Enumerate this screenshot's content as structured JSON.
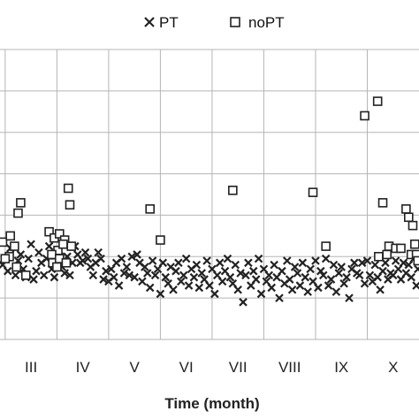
{
  "chart_data": {
    "type": "scatter",
    "xlabel": "Time (month)",
    "x_tick_labels": [
      "III",
      "IV",
      "V",
      "VI",
      "VII",
      "VIII",
      "IX",
      "X"
    ],
    "xlim": [
      2.4,
      10.5
    ],
    "ylim": [
      0,
      7
    ],
    "grid": true,
    "legend_position": "top",
    "series": [
      {
        "name": "PT",
        "marker": "x",
        "color": "#222222",
        "points": [
          [
            2.45,
            1.8
          ],
          [
            2.55,
            1.65
          ],
          [
            2.6,
            2.2
          ],
          [
            2.7,
            1.55
          ],
          [
            2.75,
            1.9
          ],
          [
            2.8,
            2.05
          ],
          [
            2.85,
            1.7
          ],
          [
            2.9,
            1.5
          ],
          [
            2.95,
            1.95
          ],
          [
            3.0,
            2.3
          ],
          [
            3.05,
            1.45
          ],
          [
            3.1,
            1.65
          ],
          [
            3.15,
            2.1
          ],
          [
            3.2,
            1.85
          ],
          [
            3.25,
            1.55
          ],
          [
            3.3,
            1.95
          ],
          [
            3.35,
            2.25
          ],
          [
            3.4,
            1.7
          ],
          [
            3.45,
            1.5
          ],
          [
            3.5,
            1.9
          ],
          [
            3.55,
            2.15
          ],
          [
            3.6,
            1.75
          ],
          [
            3.65,
            1.6
          ],
          [
            3.7,
            2.0
          ],
          [
            3.75,
            1.55
          ],
          [
            3.8,
            1.85
          ],
          [
            3.85,
            2.25
          ],
          [
            3.9,
            2.05
          ],
          [
            3.95,
            1.85
          ],
          [
            4.0,
            1.9
          ],
          [
            4.05,
            2.1
          ],
          [
            4.1,
            1.95
          ],
          [
            4.15,
            1.75
          ],
          [
            4.2,
            1.55
          ],
          [
            4.25,
            1.85
          ],
          [
            4.3,
            2.1
          ],
          [
            4.35,
            1.95
          ],
          [
            4.4,
            1.45
          ],
          [
            4.45,
            1.65
          ],
          [
            4.5,
            1.4
          ],
          [
            4.55,
            1.7
          ],
          [
            4.6,
            1.5
          ],
          [
            4.65,
            1.85
          ],
          [
            4.7,
            1.3
          ],
          [
            4.75,
            1.95
          ],
          [
            4.8,
            1.6
          ],
          [
            4.85,
            1.75
          ],
          [
            4.9,
            1.55
          ],
          [
            4.95,
            2.0
          ],
          [
            5.0,
            1.5
          ],
          [
            5.05,
            2.05
          ],
          [
            5.1,
            1.85
          ],
          [
            5.15,
            1.4
          ],
          [
            5.2,
            1.75
          ],
          [
            5.25,
            1.6
          ],
          [
            5.3,
            1.25
          ],
          [
            5.35,
            1.9
          ],
          [
            5.4,
            1.55
          ],
          [
            5.45,
            1.7
          ],
          [
            5.5,
            1.1
          ],
          [
            5.55,
            1.85
          ],
          [
            5.6,
            1.5
          ],
          [
            5.65,
            1.35
          ],
          [
            5.7,
            1.75
          ],
          [
            5.75,
            1.2
          ],
          [
            5.8,
            1.65
          ],
          [
            5.85,
            1.85
          ],
          [
            5.9,
            1.4
          ],
          [
            5.95,
            1.55
          ],
          [
            6.0,
            1.95
          ],
          [
            6.05,
            1.3
          ],
          [
            6.1,
            1.7
          ],
          [
            6.15,
            1.5
          ],
          [
            6.2,
            1.8
          ],
          [
            6.25,
            1.25
          ],
          [
            6.3,
            1.6
          ],
          [
            6.35,
            1.45
          ],
          [
            6.4,
            1.9
          ],
          [
            6.45,
            1.3
          ],
          [
            6.5,
            1.7
          ],
          [
            6.55,
            1.1
          ],
          [
            6.6,
            1.55
          ],
          [
            6.65,
            1.85
          ],
          [
            6.7,
            1.4
          ],
          [
            6.75,
            1.65
          ],
          [
            6.8,
            1.95
          ],
          [
            6.85,
            1.5
          ],
          [
            6.9,
            1.35
          ],
          [
            6.95,
            1.8
          ],
          [
            7.0,
            1.2
          ],
          [
            7.05,
            1.6
          ],
          [
            7.1,
            0.9
          ],
          [
            7.15,
            1.55
          ],
          [
            7.2,
            1.85
          ],
          [
            7.25,
            1.3
          ],
          [
            7.3,
            1.65
          ],
          [
            7.35,
            1.45
          ],
          [
            7.4,
            1.95
          ],
          [
            7.45,
            1.1
          ],
          [
            7.5,
            1.7
          ],
          [
            7.55,
            1.4
          ],
          [
            7.6,
            1.55
          ],
          [
            7.65,
            1.25
          ],
          [
            7.7,
            1.8
          ],
          [
            7.75,
            1.5
          ],
          [
            7.8,
            1.0
          ],
          [
            7.85,
            1.65
          ],
          [
            7.9,
            1.35
          ],
          [
            7.95,
            1.9
          ],
          [
            8.0,
            1.45
          ],
          [
            8.05,
            1.2
          ],
          [
            8.1,
            1.75
          ],
          [
            8.15,
            1.6
          ],
          [
            8.2,
            1.3
          ],
          [
            8.25,
            1.85
          ],
          [
            8.3,
            1.5
          ],
          [
            8.35,
            1.15
          ],
          [
            8.4,
            1.7
          ],
          [
            8.45,
            1.4
          ],
          [
            8.5,
            1.9
          ],
          [
            8.55,
            1.25
          ],
          [
            8.6,
            1.65
          ],
          [
            8.65,
            1.55
          ],
          [
            8.7,
            1.95
          ],
          [
            8.75,
            1.3
          ],
          [
            8.8,
            1.45
          ],
          [
            8.85,
            1.8
          ],
          [
            8.9,
            1.15
          ],
          [
            8.95,
            1.6
          ],
          [
            9.0,
            1.75
          ],
          [
            9.05,
            1.35
          ],
          [
            9.1,
            1.5
          ],
          [
            9.15,
            1.0
          ],
          [
            9.2,
            1.7
          ],
          [
            9.25,
            1.85
          ],
          [
            9.3,
            1.6
          ],
          [
            9.35,
            1.55
          ],
          [
            9.4,
            1.85
          ],
          [
            9.45,
            1.35
          ],
          [
            9.5,
            1.9
          ],
          [
            9.55,
            1.55
          ],
          [
            9.6,
            1.4
          ],
          [
            9.65,
            1.8
          ],
          [
            9.7,
            1.5
          ],
          [
            9.75,
            1.2
          ],
          [
            9.8,
            1.65
          ],
          [
            9.85,
            1.85
          ],
          [
            9.9,
            1.45
          ],
          [
            9.95,
            1.6
          ],
          [
            10.0,
            1.55
          ],
          [
            10.05,
            1.9
          ],
          [
            10.1,
            1.7
          ],
          [
            10.15,
            1.45
          ],
          [
            10.2,
            1.85
          ],
          [
            10.25,
            1.6
          ],
          [
            10.3,
            1.8
          ],
          [
            10.35,
            1.5
          ],
          [
            10.4,
            1.95
          ],
          [
            10.45,
            1.3
          ],
          [
            10.48,
            1.7
          ]
        ]
      },
      {
        "name": "noPT",
        "marker": "square",
        "color": "#222222",
        "points": [
          [
            2.45,
            2.35
          ],
          [
            2.6,
            2.5
          ],
          [
            2.68,
            2.25
          ],
          [
            2.75,
            3.05
          ],
          [
            2.8,
            3.3
          ],
          [
            2.58,
            2.0
          ],
          [
            2.5,
            1.95
          ],
          [
            2.72,
            1.75
          ],
          [
            2.9,
            1.55
          ],
          [
            3.35,
            2.6
          ],
          [
            3.45,
            2.45
          ],
          [
            3.55,
            2.55
          ],
          [
            3.65,
            2.4
          ],
          [
            3.52,
            2.15
          ],
          [
            3.4,
            2.05
          ],
          [
            3.42,
            1.85
          ],
          [
            3.5,
            1.75
          ],
          [
            3.55,
            1.95
          ],
          [
            3.62,
            2.3
          ],
          [
            3.68,
            1.85
          ],
          [
            3.72,
            3.65
          ],
          [
            3.75,
            3.25
          ],
          [
            3.78,
            2.25
          ],
          [
            5.3,
            3.15
          ],
          [
            5.5,
            2.4
          ],
          [
            6.9,
            3.6
          ],
          [
            8.45,
            3.55
          ],
          [
            8.7,
            2.25
          ],
          [
            9.45,
            5.4
          ],
          [
            9.7,
            5.75
          ],
          [
            9.72,
            2.0
          ],
          [
            9.8,
            3.3
          ],
          [
            9.88,
            2.05
          ],
          [
            9.92,
            2.25
          ],
          [
            10.05,
            2.2
          ],
          [
            10.15,
            2.2
          ],
          [
            10.25,
            3.15
          ],
          [
            10.3,
            2.95
          ],
          [
            10.35,
            2.05
          ],
          [
            10.38,
            2.75
          ],
          [
            10.42,
            2.3
          ],
          [
            10.45,
            2.05
          ],
          [
            10.48,
            1.9
          ]
        ]
      }
    ]
  }
}
